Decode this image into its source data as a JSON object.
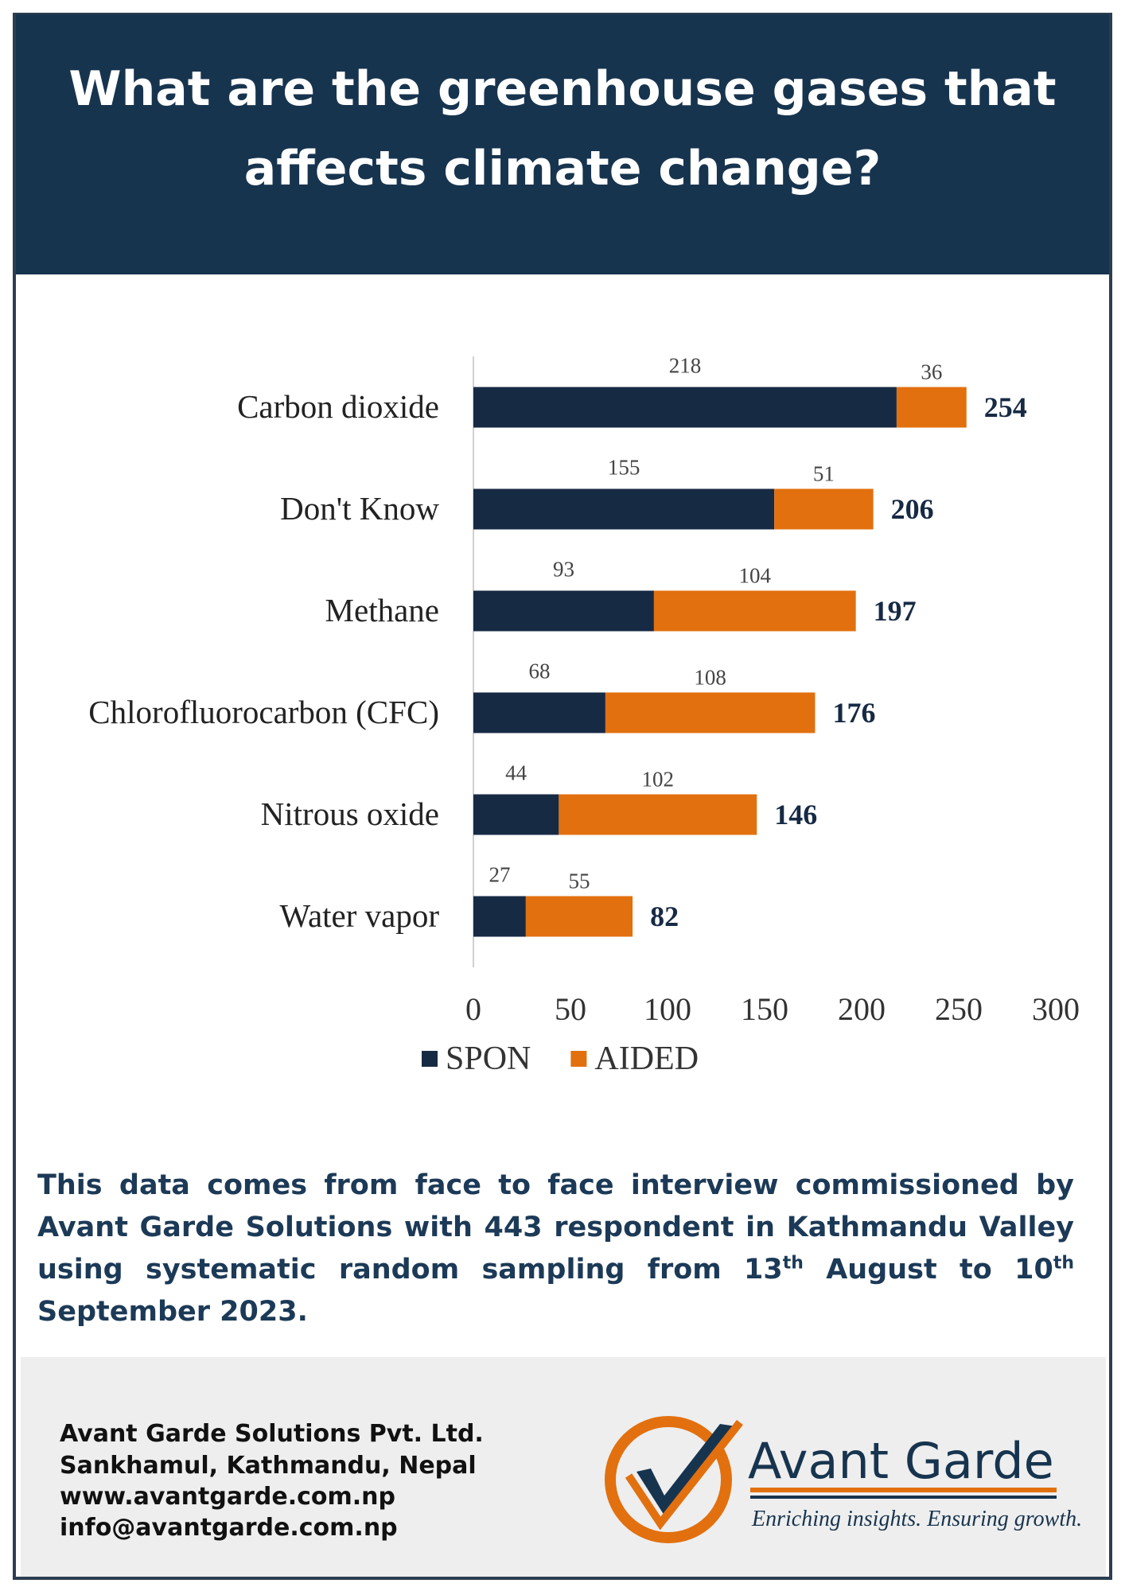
{
  "header": {
    "title": [
      "What are the greenhouse gases that",
      "affects climate change?"
    ]
  },
  "chart_data": {
    "type": "stacked-barh",
    "categories": [
      "Carbon dioxide",
      "Don't Know",
      "Methane",
      "Chlorofluorocarbon (CFC)",
      "Nitrous oxide",
      "Water vapor"
    ],
    "series": [
      {
        "name": "SPON",
        "color": "#172a44",
        "values": [
          218,
          155,
          93,
          68,
          44,
          27
        ]
      },
      {
        "name": "AIDED",
        "color": "#e2700f",
        "values": [
          36,
          51,
          104,
          108,
          102,
          55
        ]
      }
    ],
    "totals": [
      254,
      206,
      197,
      176,
      146,
      82
    ],
    "xlim": [
      0,
      300
    ],
    "xticks": [
      0,
      50,
      100,
      150,
      200,
      250,
      300
    ],
    "grid": false,
    "legend": "bottom"
  },
  "note": [
    "This data comes from face to face interview commissioned by Avant Garde Solutions with 443 respondent in Kathmandu Valley using systematic random sampling from 13",
    "th",
    " August to 10",
    "th",
    " September 2023."
  ],
  "footer": {
    "address": [
      "Avant Garde Solutions Pvt. Ltd.",
      "Sankhamul, Kathmandu, Nepal",
      "www.avantgarde.com.np",
      "info@avantgarde.com.np"
    ],
    "brand": "Avant Garde",
    "tagline": "Enriching insights. Ensuring growth."
  }
}
